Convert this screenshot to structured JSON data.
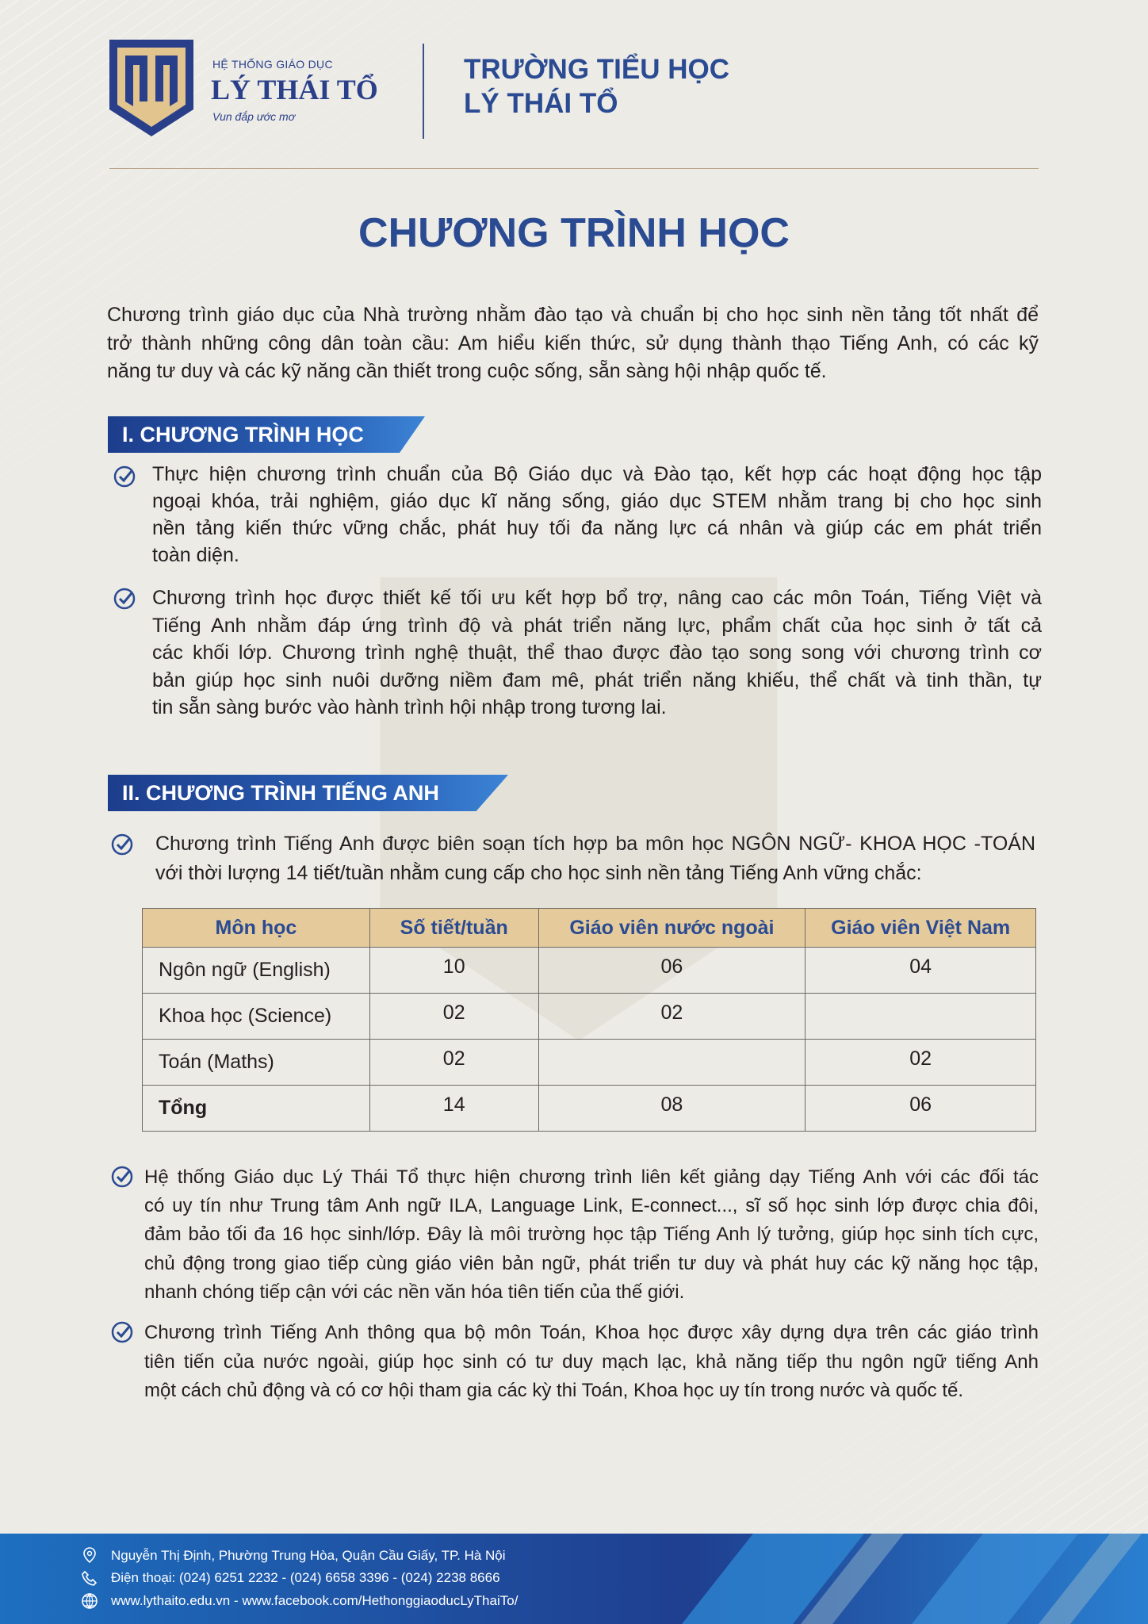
{
  "header": {
    "brand_small": "HỆ THỐNG GIÁO DỤC",
    "brand_name": "LÝ THÁI TỔ",
    "slogan": "Vun đắp ước mơ",
    "school_line1": "TRƯỜNG TIỂU HỌC",
    "school_line2": "LÝ THÁI TỔ"
  },
  "title": "CHƯƠNG TRÌNH HỌC",
  "intro": [
    "Chương trình giáo dục của Nhà trường nhằm đào tạo và chuẩn bị cho học sinh nền tảng tốt nhất để",
    "trở thành những công dân toàn cầu: Am hiểu kiến thức, sử dụng thành thạo Tiếng Anh, có các kỹ",
    "năng tư duy và các kỹ năng cần thiết trong cuộc sống, sẵn sàng hội nhập quốc tế."
  ],
  "section1": {
    "heading": "I. CHƯƠNG TRÌNH HỌC",
    "bullets": [
      [
        "Thực hiện chương trình chuẩn của Bộ Giáo dục và Đào tạo, kết hợp các hoạt động học tập",
        "ngoại khóa, trải nghiệm, giáo dục kĩ năng sống, giáo dục STEM nhằm trang bị cho học sinh",
        "nền tảng kiến thức vững chắc, phát huy tối đa năng lực cá nhân và giúp các em phát triển",
        "toàn diện."
      ],
      [
        "Chương trình học được thiết kế tối ưu kết hợp bổ trợ, nâng cao các môn Toán, Tiếng Việt và",
        "Tiếng Anh nhằm đáp ứng trình độ và phát triển năng lực, phẩm chất của học sinh ở tất cả",
        "các khối lớp. Chương trình nghệ thuật, thể thao được đào tạo song song với chương trình cơ",
        "bản giúp học sinh nuôi dưỡng niềm đam mê, phát triển năng khiếu, thể chất và tinh thần, tự",
        "tin sẵn sàng bước vào hành trình hội nhập trong tương lai."
      ]
    ]
  },
  "section2": {
    "heading": "II. CHƯƠNG TRÌNH TIẾNG ANH",
    "bullet_intro": [
      "Chương trình Tiếng Anh được biên soạn tích hợp ba môn học NGÔN NGỮ- KHOA HỌC -TOÁN",
      "với thời lượng 14 tiết/tuần nhằm cung cấp cho học sinh nền tảng Tiếng Anh vững chắc:"
    ],
    "table": {
      "headers": [
        "Môn học",
        "Số tiết/tuần",
        "Giáo viên nước ngoài",
        "Giáo viên Việt Nam"
      ],
      "rows": [
        [
          "Ngôn ngữ (English)",
          "10",
          "06",
          "04"
        ],
        [
          "Khoa học (Science)",
          "02",
          "02",
          ""
        ],
        [
          "Toán (Maths)",
          "02",
          "",
          "02"
        ],
        [
          "Tổng",
          "14",
          "08",
          "06"
        ]
      ]
    },
    "bullets": [
      [
        "Hệ thống Giáo dục Lý Thái Tổ thực hiện chương trình liên kết giảng dạy Tiếng Anh với các đối tác",
        "có uy tín như Trung tâm Anh ngữ ILA, Language Link, E-connect..., sĩ số học sinh lớp được chia đôi,",
        "đảm bảo tối đa 16 học sinh/lớp. Đây là môi trường học tập Tiếng Anh lý tưởng, giúp học sinh tích cực,",
        "chủ động trong giao tiếp cùng giáo viên bản ngữ, phát triển tư duy và phát huy các kỹ năng học tập,",
        "nhanh chóng tiếp cận với các nền văn hóa tiên tiến của thế giới."
      ],
      [
        "Chương trình Tiếng Anh thông qua bộ môn Toán, Khoa học được xây dựng dựa trên các giáo trình",
        "tiên tiến của nước ngoài, giúp học sinh có tư duy mạch lạc, khả năng tiếp thu ngôn ngữ tiếng Anh",
        "một cách chủ động và có cơ hội tham gia các kỳ thi Toán, Khoa học uy tín trong nước và quốc tế."
      ]
    ]
  },
  "footer": {
    "address": "Nguyễn Thị Định, Phường Trung Hòa, Quận Cầu Giấy, TP. Hà Nội",
    "phone": "Điện thoại: (024) 6251 2232  -  (024) 6658 3396  -  (024) 2238 8666",
    "web": "www.lythaito.edu.vn   -  www.facebook.com/HethonggiaoducLyThaiTo/",
    "icons": [
      "location-icon",
      "phone-icon",
      "globe-icon"
    ]
  },
  "colors": {
    "brand_blue": "#2a4a92",
    "gold": "#e5cb9c",
    "background": "#ecebe6"
  }
}
